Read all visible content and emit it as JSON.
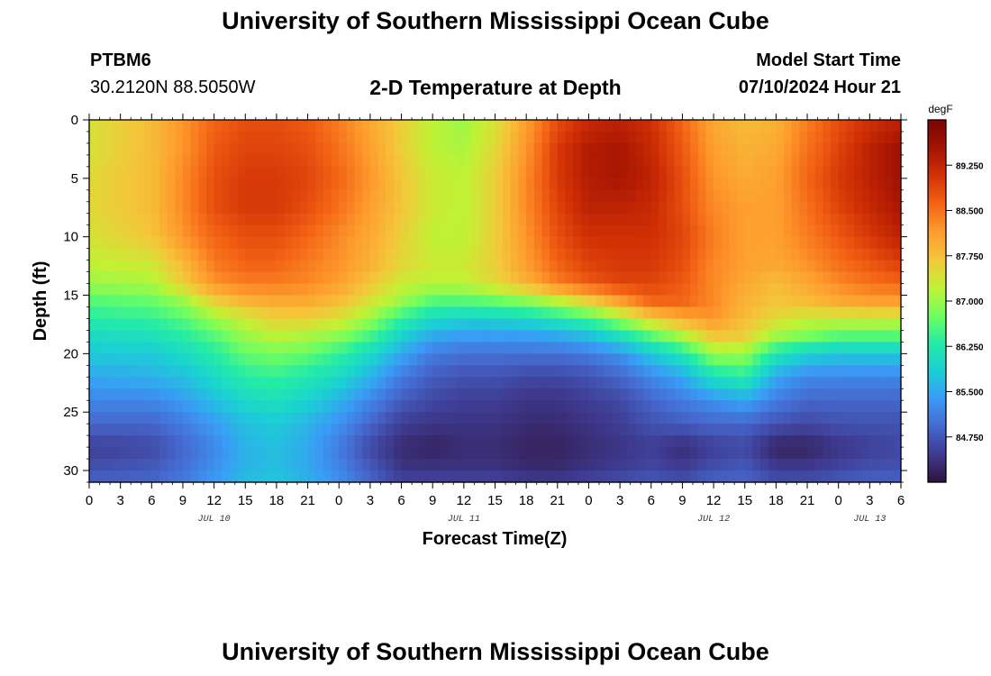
{
  "header": {
    "title": "University of Southern Mississippi Ocean Cube",
    "station_id": "PTBM6",
    "coordinates": "30.2120N  88.5050W",
    "model_start_label": "Model Start Time",
    "model_start_value": "07/10/2024 Hour 21"
  },
  "footer": {
    "title": "University of Southern Mississippi Ocean Cube"
  },
  "chart_data": {
    "type": "heatmap",
    "title": "2-D Temperature at Depth",
    "xlabel": "Forecast Time(Z)",
    "ylabel": "Depth (ft)",
    "x_tick_labels": [
      "0",
      "3",
      "6",
      "9",
      "12",
      "15",
      "18",
      "21",
      "0",
      "3",
      "6",
      "9",
      "12",
      "15",
      "18",
      "21",
      "0",
      "3",
      "6",
      "9",
      "12",
      "15",
      "18",
      "21",
      "0",
      "3",
      "6"
    ],
    "date_labels": [
      {
        "text": "JUL 10",
        "at_hour": 12
      },
      {
        "text": "JUL 11",
        "at_hour": 36
      },
      {
        "text": "JUL 12",
        "at_hour": 60
      },
      {
        "text": "JUL 13",
        "at_hour": 75
      }
    ],
    "x_range_hours": [
      0,
      78
    ],
    "y_ticks": [
      0,
      5,
      10,
      15,
      20,
      25,
      30
    ],
    "y_range_ft": [
      0,
      31
    ],
    "colorbar": {
      "unit": "degF",
      "range": [
        84.0,
        90.0
      ],
      "tick_values": [
        84.75,
        85.5,
        86.25,
        87.0,
        87.75,
        88.5,
        89.25
      ],
      "tick_labels": [
        "84.750",
        "85.500",
        "86.250",
        "87.000",
        "87.750",
        "88.500",
        "89.250"
      ],
      "colors": [
        "#30123b",
        "#3e3a8f",
        "#4669cf",
        "#3a9bf6",
        "#1bcfd4",
        "#24eca6",
        "#71fe5f",
        "#c3f134",
        "#f4c63a",
        "#fe9b2d",
        "#f36315",
        "#d23105",
        "#a41303",
        "#7a0403"
      ]
    },
    "depths_ft": [
      0,
      2.5,
      5,
      7.5,
      10,
      12.5,
      14,
      15.5,
      17,
      18.5,
      20,
      22,
      24,
      26,
      28,
      30,
      31
    ],
    "times_hr": [
      0,
      6,
      9,
      12,
      15,
      18,
      21,
      24,
      27,
      30,
      33,
      36,
      39,
      42,
      45,
      48,
      51,
      54,
      57,
      60,
      63,
      66,
      69,
      72,
      75,
      78
    ],
    "values_degF": [
      [
        87.4,
        87.8,
        88.2,
        88.6,
        88.8,
        88.8,
        88.7,
        88.4,
        88.0,
        87.6,
        87.2,
        87.0,
        87.4,
        88.1,
        88.8,
        89.2,
        89.3,
        89.1,
        88.6,
        88.0,
        87.8,
        87.9,
        88.4,
        88.8,
        89.1,
        89.3
      ],
      [
        87.4,
        87.8,
        88.2,
        88.7,
        88.9,
        88.9,
        88.8,
        88.5,
        88.1,
        87.6,
        87.2,
        87.1,
        87.5,
        88.2,
        89.0,
        89.4,
        89.5,
        89.2,
        88.7,
        88.1,
        87.9,
        88.0,
        88.5,
        88.9,
        89.3,
        89.6
      ],
      [
        87.5,
        87.8,
        88.3,
        88.8,
        89.0,
        89.0,
        88.9,
        88.6,
        88.2,
        87.7,
        87.3,
        87.2,
        87.6,
        88.3,
        89.0,
        89.4,
        89.5,
        89.3,
        88.8,
        88.2,
        88.0,
        88.1,
        88.6,
        89.0,
        89.3,
        89.6
      ],
      [
        87.5,
        87.8,
        88.3,
        88.8,
        89.0,
        89.0,
        88.8,
        88.5,
        88.1,
        87.7,
        87.3,
        87.2,
        87.6,
        88.3,
        88.9,
        89.3,
        89.3,
        89.2,
        88.8,
        88.3,
        88.1,
        88.1,
        88.5,
        88.9,
        89.2,
        89.5
      ],
      [
        87.4,
        87.7,
        88.2,
        88.6,
        88.8,
        88.8,
        88.6,
        88.3,
        88.0,
        87.6,
        87.2,
        87.2,
        87.6,
        88.2,
        88.8,
        89.1,
        89.1,
        89.1,
        88.9,
        88.4,
        88.1,
        88.1,
        88.4,
        88.7,
        89.0,
        89.3
      ],
      [
        87.2,
        87.3,
        87.8,
        88.4,
        88.6,
        88.6,
        88.4,
        88.2,
        87.9,
        87.5,
        87.3,
        87.3,
        87.6,
        88.1,
        88.6,
        88.9,
        89.0,
        89.0,
        88.8,
        88.3,
        88.1,
        88.0,
        88.2,
        88.5,
        88.7,
        88.9
      ],
      [
        87.0,
        87.1,
        87.6,
        88.2,
        88.4,
        88.4,
        88.3,
        88.1,
        87.7,
        87.3,
        87.2,
        87.2,
        87.5,
        87.9,
        88.4,
        88.7,
        88.9,
        88.9,
        88.7,
        88.3,
        88.0,
        87.8,
        88.0,
        88.3,
        88.5,
        88.6
      ],
      [
        86.6,
        86.7,
        87.0,
        87.6,
        87.9,
        88.0,
        88.0,
        87.8,
        87.4,
        87.0,
        86.6,
        86.6,
        86.7,
        86.9,
        87.2,
        87.6,
        88.1,
        88.6,
        88.6,
        88.3,
        87.9,
        87.7,
        87.8,
        88.0,
        88.1,
        88.1
      ],
      [
        86.3,
        86.4,
        86.6,
        87.0,
        87.3,
        87.6,
        87.6,
        87.4,
        87.0,
        86.4,
        86.0,
        85.9,
        85.9,
        86.0,
        86.2,
        86.5,
        87.0,
        87.6,
        88.0,
        88.2,
        87.8,
        87.5,
        87.3,
        87.3,
        87.3,
        87.3
      ],
      [
        86.0,
        86.1,
        86.3,
        86.6,
        87.0,
        87.2,
        87.1,
        86.9,
        86.5,
        85.9,
        85.5,
        85.4,
        85.4,
        85.4,
        85.5,
        85.7,
        86.1,
        86.6,
        87.1,
        87.7,
        87.6,
        87.0,
        86.8,
        86.6,
        86.6,
        86.6
      ],
      [
        85.8,
        85.8,
        86.0,
        86.3,
        86.7,
        86.8,
        86.7,
        86.4,
        86.0,
        85.5,
        85.1,
        85.0,
        85.0,
        85.0,
        85.0,
        85.1,
        85.3,
        85.8,
        86.2,
        87.0,
        87.0,
        86.2,
        85.9,
        85.8,
        85.8,
        85.8
      ],
      [
        85.5,
        85.6,
        85.7,
        86.0,
        86.3,
        86.4,
        86.2,
        86.0,
        85.6,
        85.1,
        84.8,
        84.7,
        84.7,
        84.6,
        84.6,
        84.7,
        84.9,
        85.2,
        85.5,
        86.1,
        86.3,
        85.5,
        85.2,
        85.2,
        85.2,
        85.2
      ],
      [
        85.2,
        85.2,
        85.4,
        85.7,
        86.0,
        86.1,
        85.9,
        85.6,
        85.2,
        84.8,
        84.6,
        84.5,
        84.5,
        84.4,
        84.4,
        84.5,
        84.6,
        84.9,
        85.1,
        85.3,
        85.5,
        85.1,
        84.9,
        84.9,
        84.9,
        84.9
      ],
      [
        84.9,
        84.9,
        85.1,
        85.4,
        85.7,
        85.8,
        85.6,
        85.3,
        84.9,
        84.5,
        84.4,
        84.4,
        84.4,
        84.3,
        84.3,
        84.4,
        84.5,
        84.7,
        84.8,
        84.9,
        84.9,
        84.7,
        84.6,
        84.7,
        84.7,
        84.7
      ],
      [
        84.5,
        84.6,
        84.9,
        85.2,
        85.6,
        85.7,
        85.5,
        85.1,
        84.6,
        84.3,
        84.2,
        84.3,
        84.3,
        84.2,
        84.2,
        84.3,
        84.4,
        84.5,
        84.3,
        84.5,
        84.6,
        84.2,
        84.2,
        84.4,
        84.5,
        84.6
      ],
      [
        84.7,
        84.8,
        85.0,
        85.3,
        85.6,
        85.7,
        85.5,
        85.2,
        84.8,
        84.4,
        84.4,
        84.4,
        84.4,
        84.3,
        84.3,
        84.4,
        84.5,
        84.6,
        84.5,
        84.7,
        84.8,
        84.5,
        84.5,
        84.6,
        84.7,
        84.7
      ],
      [
        84.9,
        84.9,
        85.1,
        85.4,
        85.7,
        85.8,
        85.6,
        85.3,
        84.9,
        84.6,
        84.6,
        84.6,
        84.6,
        84.5,
        84.5,
        84.6,
        84.7,
        84.8,
        84.7,
        84.9,
        84.9,
        84.7,
        84.7,
        84.8,
        84.9,
        84.9
      ]
    ]
  }
}
